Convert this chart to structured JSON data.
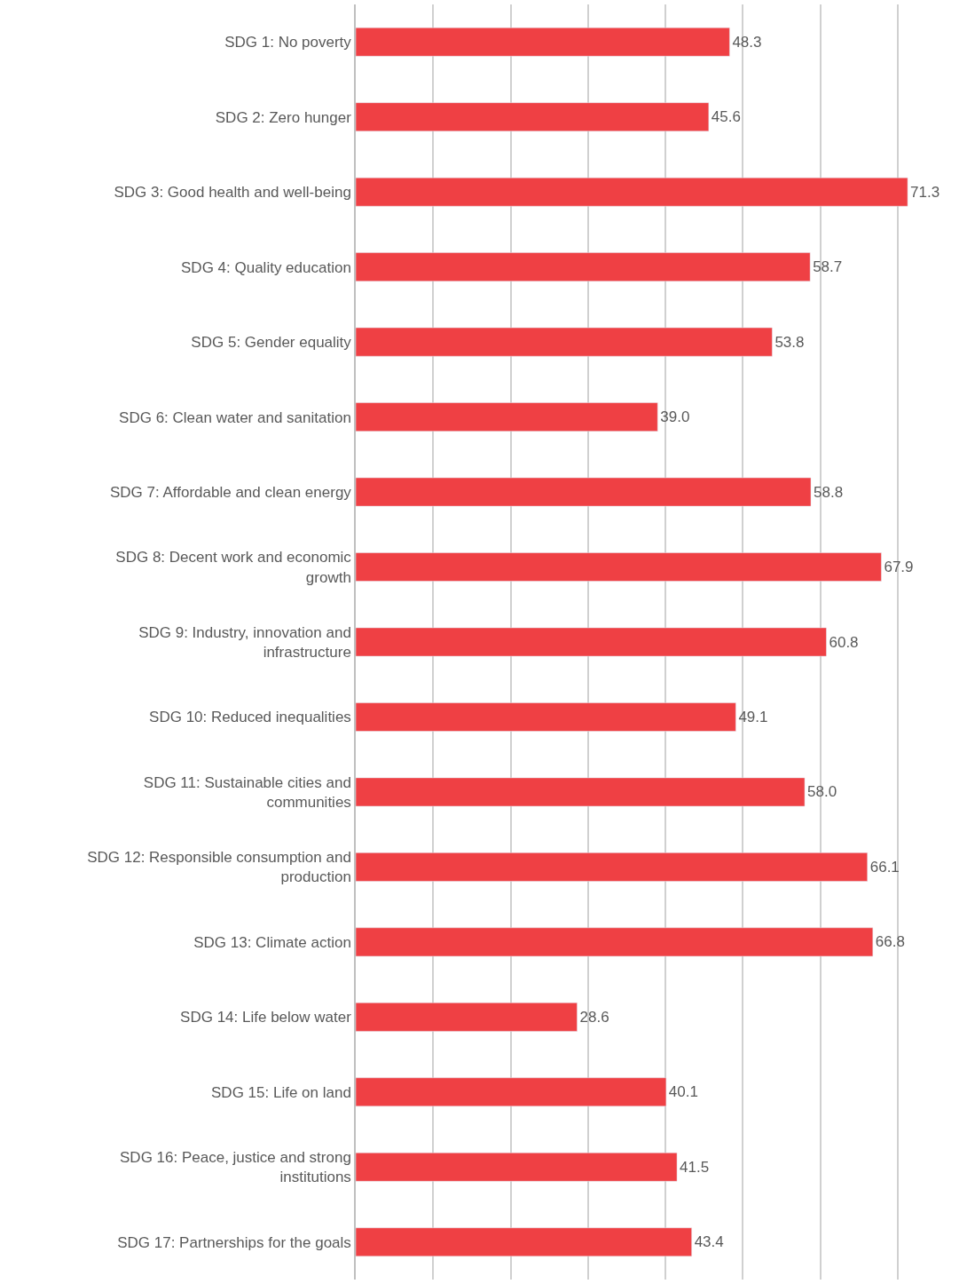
{
  "chart_data": {
    "type": "bar",
    "orientation": "horizontal",
    "categories": [
      "SDG 1: No poverty",
      "SDG 2: Zero hunger",
      "SDG 3: Good health and well-being",
      "SDG 4: Quality education",
      "SDG 5: Gender equality",
      "SDG 6: Clean water and sanitation",
      "SDG 7: Affordable and clean energy",
      "SDG 8: Decent work and economic growth",
      "SDG 9: Industry, innovation and infrastructure",
      "SDG 10: Reduced inequalities",
      "SDG 11: Sustainable cities and communities",
      "SDG 12: Responsible consumption and production",
      "SDG 13: Climate action",
      "SDG 14: Life below water",
      "SDG 15: Life on land",
      "SDG 16: Peace, justice and strong institutions",
      "SDG 17: Partnerships for the goals"
    ],
    "values": [
      48.3,
      45.6,
      71.3,
      58.7,
      53.8,
      39.0,
      58.8,
      67.9,
      60.8,
      49.1,
      58.0,
      66.1,
      66.8,
      28.6,
      40.1,
      41.5,
      43.4
    ],
    "value_labels": [
      "48.3",
      "45.6",
      "71.3",
      "58.7",
      "53.8",
      "39.0",
      "58.8",
      "67.9",
      "60.8",
      "49.1",
      "58.0",
      "66.1",
      "66.8",
      "28.6",
      "40.1",
      "41.5",
      "43.4"
    ],
    "color": "#ef4044",
    "xlim": [
      0,
      80
    ],
    "xticks": [
      {
        "value": 0,
        "label": null
      },
      {
        "value": 10,
        "label": null
      },
      {
        "value": 20,
        "label": null
      },
      {
        "value": 30,
        "label": null
      },
      {
        "value": 40,
        "label": null
      },
      {
        "value": 50,
        "label": null
      },
      {
        "value": 60,
        "label": null
      },
      {
        "value": 70,
        "label": null
      }
    ],
    "grid": "x",
    "tick_labels": "y",
    "legend": false
  }
}
